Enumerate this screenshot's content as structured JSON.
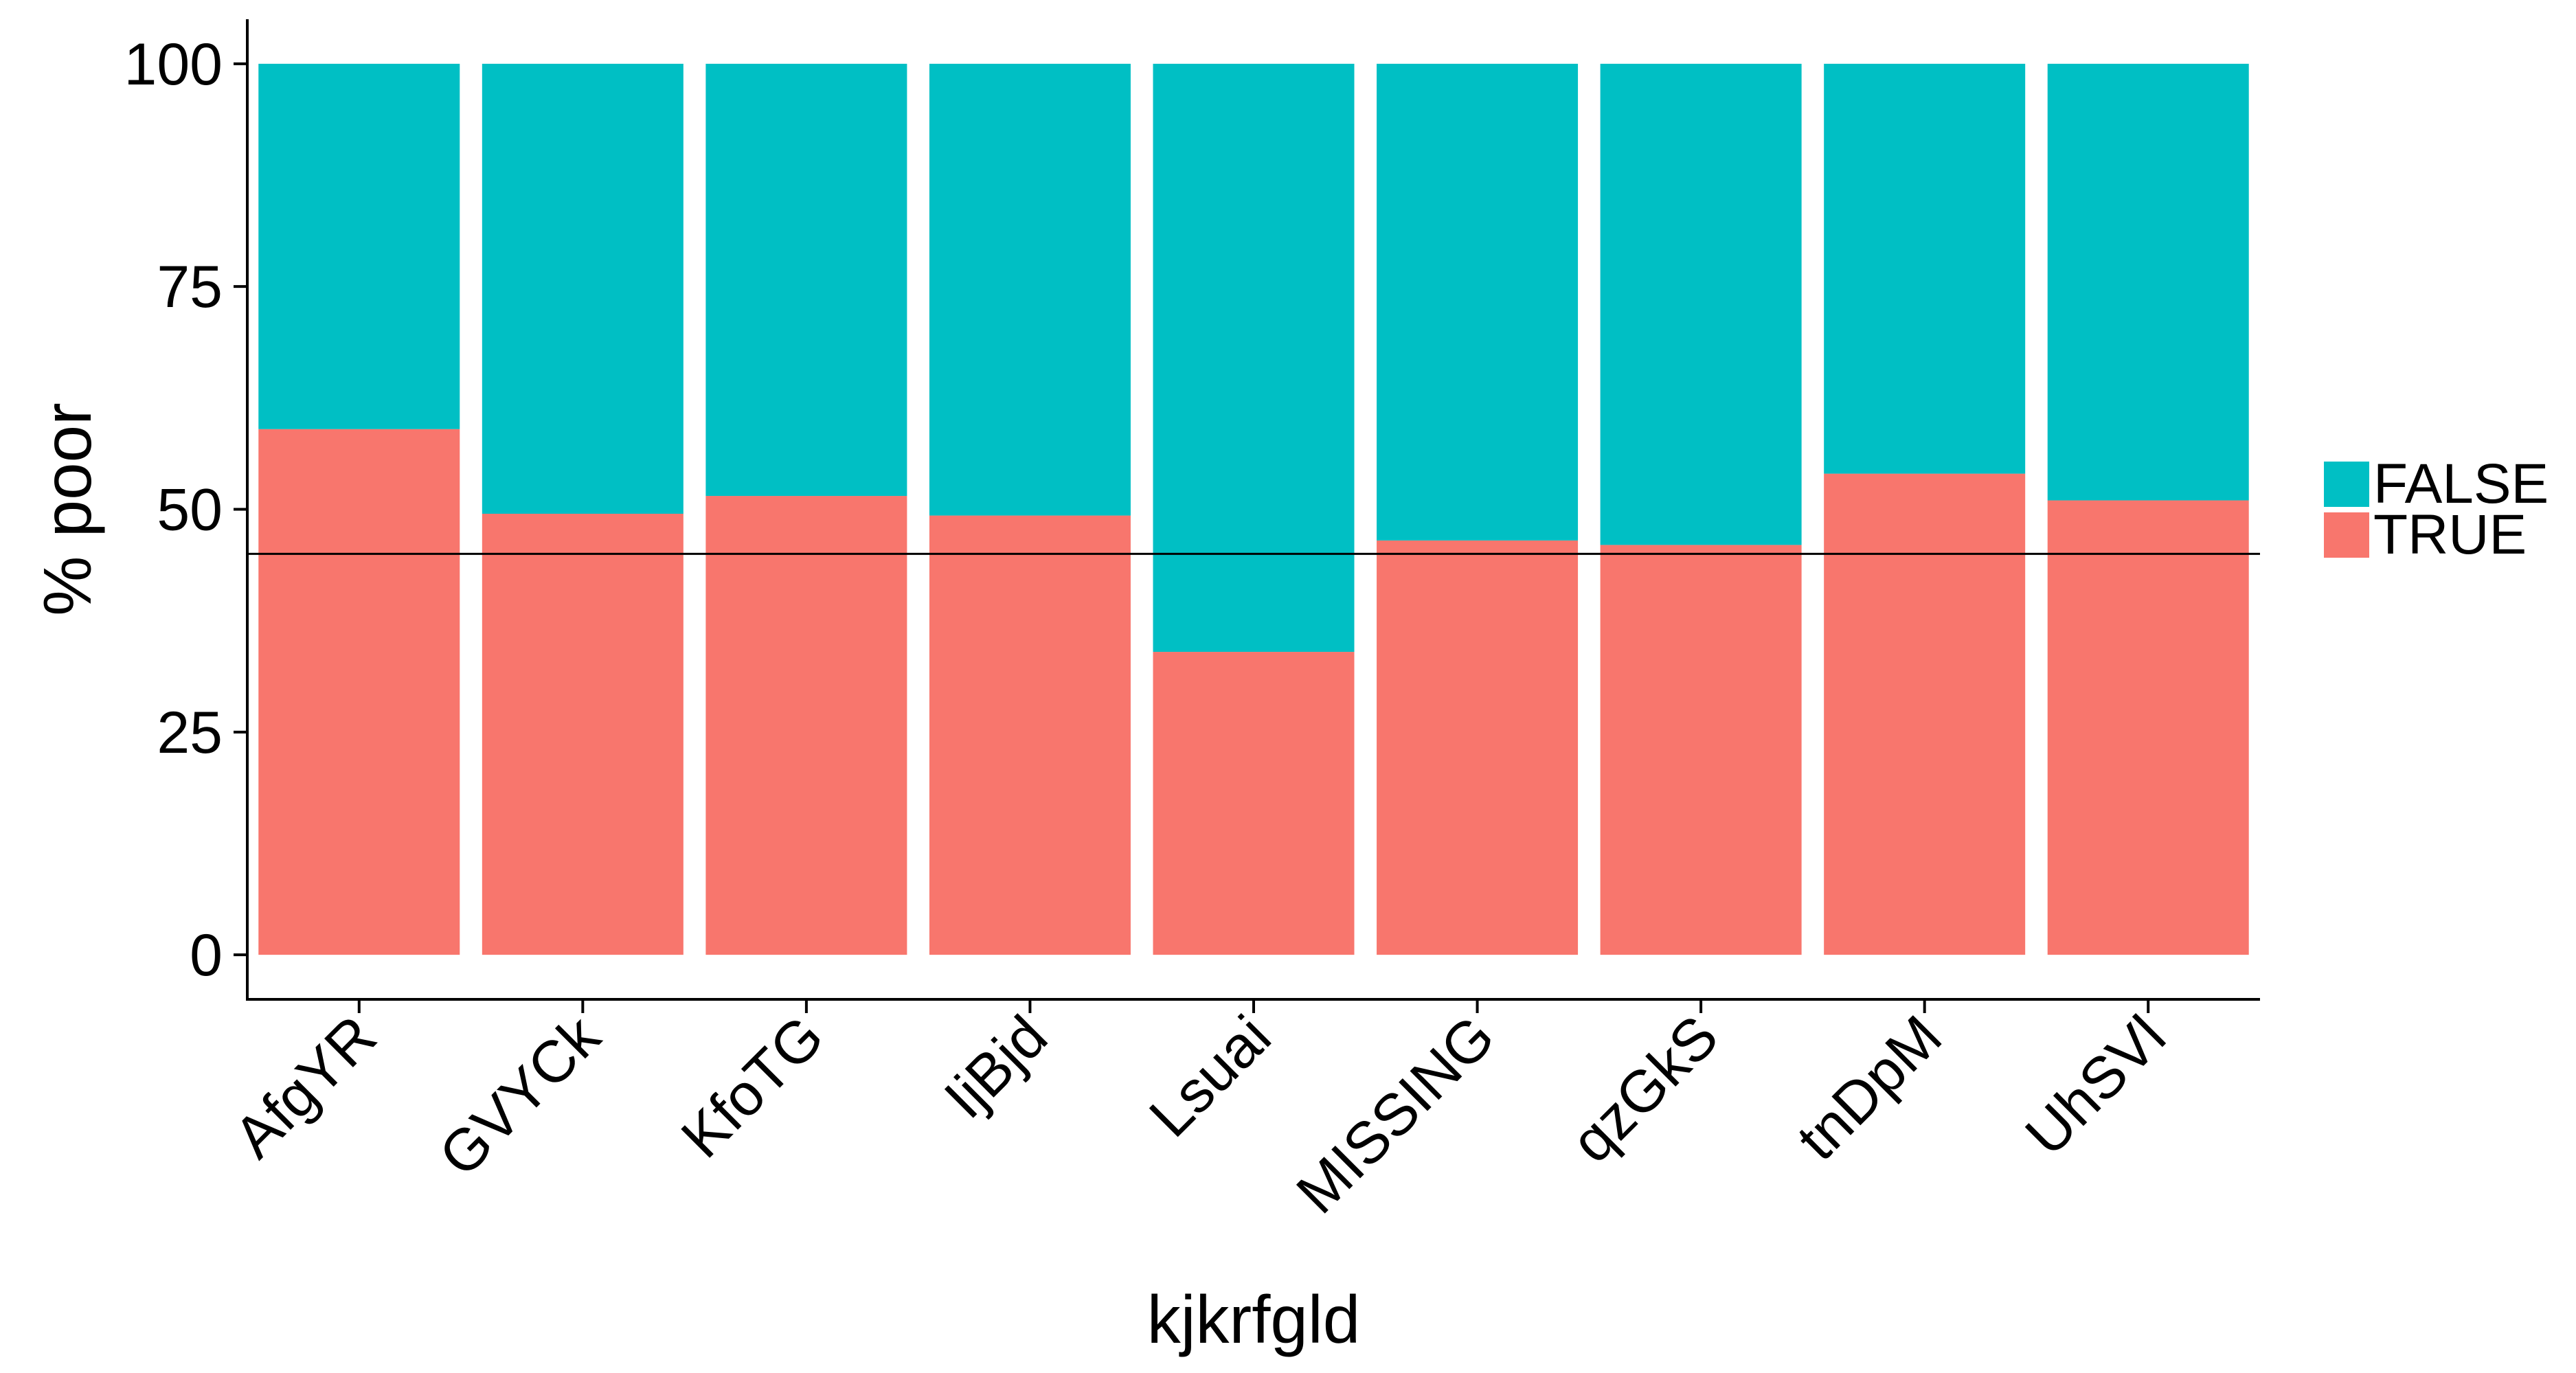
{
  "chart_data": {
    "type": "bar",
    "stacked": true,
    "title": "",
    "xlabel": "kjkrfgld",
    "ylabel": "% poor",
    "ylim": [
      -5,
      105
    ],
    "yticks": [
      0,
      25,
      50,
      75,
      100
    ],
    "categories": [
      "AfgYR",
      "GVYCk",
      "KfoTG",
      "IjBjd",
      "Lsuai",
      "MISSING",
      "qzGkS",
      "tnDpM",
      "UhSVl"
    ],
    "series": [
      {
        "name": "TRUE",
        "color": "#F8766D",
        "values": [
          59,
          49.5,
          51.5,
          49.3,
          34,
          46.5,
          46,
          54,
          51
        ]
      },
      {
        "name": "FALSE",
        "color": "#00BFC4",
        "values": [
          41,
          50.5,
          48.5,
          50.7,
          66,
          53.5,
          54,
          46,
          49
        ]
      }
    ],
    "reference_line": {
      "y": 45,
      "color": "#000000"
    },
    "legend": {
      "placement": "right",
      "order": [
        "FALSE",
        "TRUE"
      ]
    },
    "grid": false
  }
}
